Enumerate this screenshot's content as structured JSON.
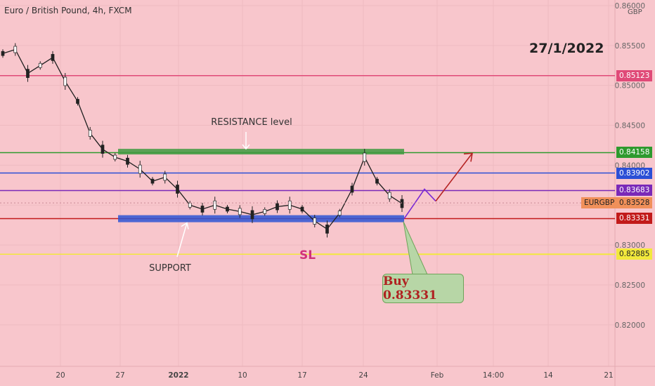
{
  "chart_data": {
    "type": "line",
    "title": "Euro / British Pound, 4h, FXCM",
    "ylabel": "GBP",
    "date_annotation": "27/1/2022",
    "ylim": [
      0.8148,
      0.8607
    ],
    "y_ticks": [
      "0.86000",
      "0.85500",
      "0.85000",
      "0.84500",
      "0.84000",
      "0.83500",
      "0.83000",
      "0.82500",
      "0.82000"
    ],
    "x_ticks": [
      "20",
      "27",
      "2022",
      "10",
      "17",
      "24",
      "Feb",
      "14:00",
      "14",
      "21"
    ],
    "series": [
      {
        "x": [
          "2021-12-14",
          "2021-12-15",
          "2021-12-16",
          "2021-12-17",
          "2021-12-20",
          "2021-12-21",
          "2021-12-22",
          "2021-12-23",
          "2021-12-24",
          "2021-12-27",
          "2021-12-28",
          "2021-12-29",
          "2021-12-30",
          "2021-12-31",
          "2022-01-03",
          "2022-01-04",
          "2022-01-05",
          "2022-01-06",
          "2022-01-07",
          "2022-01-10",
          "2022-01-11",
          "2022-01-12",
          "2022-01-13",
          "2022-01-14",
          "2022-01-17",
          "2022-01-18",
          "2022-01-19",
          "2022-01-20",
          "2022-01-21",
          "2022-01-24",
          "2022-01-25",
          "2022-01-26",
          "2022-01-27"
        ],
        "values": [
          0.854,
          0.8545,
          0.8515,
          0.8525,
          0.8535,
          0.8505,
          0.848,
          0.844,
          0.842,
          0.841,
          0.8405,
          0.8395,
          0.838,
          0.8385,
          0.837,
          0.835,
          0.8345,
          0.835,
          0.8345,
          0.8342,
          0.8338,
          0.8342,
          0.8348,
          0.835,
          0.8345,
          0.833,
          0.832,
          0.834,
          0.837,
          0.841,
          0.838,
          0.8362,
          0.8352
        ]
      }
    ],
    "levels": [
      {
        "label": "0.85123",
        "value": 0.85123,
        "color": "#e04a78",
        "tag_bg": "#e04a78"
      },
      {
        "label": "0.84158",
        "value": 0.84158,
        "color": "#2e9a2e",
        "tag_bg": "#2e9a2e"
      },
      {
        "label": "0.83902",
        "value": 0.83902,
        "color": "#2b4fd6",
        "tag_bg": "#2b4fd6"
      },
      {
        "label": "0.83683",
        "value": 0.83683,
        "color": "#7a29b8",
        "tag_bg": "#7a29b8"
      },
      {
        "label": "0.83331",
        "value": 0.83331,
        "color": "#c21a1a",
        "tag_bg": "#c21a1a"
      },
      {
        "label": "0.82885",
        "value": 0.82885,
        "color": "#f2e83c",
        "tag_bg": "#f2e83c"
      }
    ],
    "current_price": {
      "symbol": "EURGBP",
      "value": "0.83528",
      "color": "#f0905a"
    },
    "annotations": {
      "resistance": "RESISTANCE level",
      "support": "SUPPORT",
      "stop_loss": "SL",
      "buy": "Buy 0.83331"
    },
    "zones": [
      {
        "name": "resistance-zone",
        "value": 0.8417,
        "color": "#3f9a3f"
      },
      {
        "name": "support-zone",
        "value": 0.8333,
        "color": "#2e55d4"
      }
    ],
    "projection": [
      0.8333,
      0.837,
      0.8355,
      0.8415
    ],
    "grid": true
  }
}
